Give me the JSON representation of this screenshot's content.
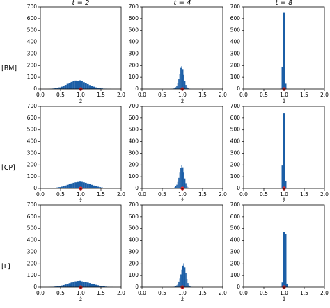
{
  "row_labels": [
    "[BM]",
    "[CP]",
    "[Γ]"
  ],
  "chart_data": [
    {
      "type": "histogram",
      "title": "t = 2",
      "xlabel": "ẑ",
      "color": "#1b5ea6",
      "marker_color": "#e8282b",
      "true_value": 1,
      "bins": [
        0.2,
        0.25,
        0.3,
        0.35,
        0.4,
        0.45,
        0.5,
        0.55,
        0.6,
        0.65,
        0.7,
        0.75,
        0.8,
        0.85,
        0.9,
        0.95,
        1.0,
        1.05,
        1.1,
        1.15,
        1.2,
        1.25,
        1.3,
        1.35,
        1.4,
        1.45,
        1.5,
        1.55,
        1.6,
        1.65,
        1.7,
        1.75,
        1.8
      ],
      "counts": [
        1,
        2,
        4,
        6,
        10,
        14,
        20,
        27,
        35,
        44,
        52,
        60,
        66,
        72,
        70,
        74,
        66,
        58,
        50,
        42,
        34,
        26,
        20,
        14,
        10,
        7,
        5,
        3,
        2,
        1,
        1,
        0
      ],
      "xlim": [
        0,
        2
      ],
      "ylim": [
        0,
        700
      ],
      "xticks": [
        {
          "value": 0,
          "label": "0.0"
        },
        0.5,
        {
          "value": 1,
          "label": "1.0"
        },
        1.5,
        {
          "value": 2,
          "label": "2.0"
        }
      ],
      "yticks": [
        0,
        100,
        200,
        300,
        400,
        500,
        600,
        700
      ]
    },
    {
      "type": "histogram",
      "title": "t = 4",
      "xlabel": "ẑ",
      "color": "#1b5ea6",
      "marker_color": "#e8282b",
      "true_value": 1,
      "bins": [
        0.7,
        0.725,
        0.75,
        0.775,
        0.8,
        0.825,
        0.85,
        0.875,
        0.9,
        0.925,
        0.95,
        0.975,
        1.0,
        1.025,
        1.05,
        1.075,
        1.1,
        1.125,
        1.15,
        1.175,
        1.2,
        1.225,
        1.25,
        1.275,
        1.3
      ],
      "counts": [
        0,
        1,
        2,
        4,
        8,
        15,
        28,
        50,
        85,
        130,
        180,
        195,
        170,
        120,
        70,
        35,
        15,
        6,
        3,
        1,
        0,
        0,
        0,
        0
      ],
      "xlim": [
        0,
        2
      ],
      "ylim": [
        0,
        700
      ],
      "xticks": [
        {
          "value": 0,
          "label": "0.0"
        },
        0.5,
        {
          "value": 1,
          "label": "1.0"
        },
        1.5,
        {
          "value": 2,
          "label": "2.0"
        }
      ],
      "yticks": [
        0,
        100,
        200,
        300,
        400,
        500,
        600,
        700
      ]
    },
    {
      "type": "histogram",
      "title": "t = 8",
      "xlabel": "ẑ",
      "color": "#1b5ea6",
      "marker_color": "#e8282b",
      "true_value": 1,
      "bins": [
        0.9,
        0.94,
        0.98,
        1.02,
        1.06,
        1.1
      ],
      "counts": [
        3,
        190,
        655,
        45,
        1
      ],
      "xlim": [
        0,
        2
      ],
      "ylim": [
        0,
        700
      ],
      "xticks": [
        {
          "value": 0,
          "label": "0.0"
        },
        0.5,
        {
          "value": 1,
          "label": "1.0"
        },
        1.5,
        {
          "value": 2,
          "label": "2.0"
        }
      ],
      "yticks": [
        0,
        100,
        200,
        300,
        400,
        500,
        600,
        700
      ]
    },
    {
      "type": "histogram",
      "xlabel": "ẑ",
      "color": "#1b5ea6",
      "marker_color": "#e8282b",
      "true_value": 1,
      "bins": [
        0.2,
        0.25,
        0.3,
        0.35,
        0.4,
        0.45,
        0.5,
        0.55,
        0.6,
        0.65,
        0.7,
        0.75,
        0.8,
        0.85,
        0.9,
        0.95,
        1.0,
        1.05,
        1.1,
        1.15,
        1.2,
        1.25,
        1.3,
        1.35,
        1.4,
        1.45,
        1.5,
        1.55,
        1.6,
        1.65,
        1.7,
        1.75,
        1.8
      ],
      "counts": [
        1,
        2,
        3,
        5,
        8,
        11,
        15,
        20,
        25,
        31,
        37,
        43,
        48,
        52,
        55,
        58,
        56,
        52,
        48,
        43,
        37,
        31,
        25,
        20,
        15,
        11,
        8,
        5,
        3,
        2,
        1,
        1
      ],
      "xlim": [
        0,
        2
      ],
      "ylim": [
        0,
        700
      ],
      "xticks": [
        {
          "value": 0,
          "label": "0.0"
        },
        0.5,
        {
          "value": 1,
          "label": "1.0"
        },
        1.5,
        {
          "value": 2,
          "label": "2.0"
        }
      ],
      "yticks": [
        0,
        100,
        200,
        300,
        400,
        500,
        600,
        700
      ]
    },
    {
      "type": "histogram",
      "xlabel": "ẑ",
      "color": "#1b5ea6",
      "marker_color": "#e8282b",
      "true_value": 1,
      "bins": [
        0.7,
        0.725,
        0.75,
        0.775,
        0.8,
        0.825,
        0.85,
        0.875,
        0.9,
        0.925,
        0.95,
        0.975,
        1.0,
        1.025,
        1.05,
        1.075,
        1.1,
        1.125,
        1.15,
        1.175,
        1.2,
        1.225,
        1.25,
        1.275,
        1.3
      ],
      "counts": [
        0,
        1,
        2,
        5,
        10,
        18,
        32,
        55,
        90,
        135,
        175,
        200,
        180,
        135,
        85,
        45,
        20,
        8,
        3,
        1,
        0,
        0,
        0,
        0
      ],
      "xlim": [
        0,
        2
      ],
      "ylim": [
        0,
        700
      ],
      "xticks": [
        {
          "value": 0,
          "label": "0.0"
        },
        0.5,
        {
          "value": 1,
          "label": "1.0"
        },
        1.5,
        {
          "value": 2,
          "label": "2.0"
        }
      ],
      "yticks": [
        0,
        100,
        200,
        300,
        400,
        500,
        600,
        700
      ]
    },
    {
      "type": "histogram",
      "xlabel": "ẑ",
      "color": "#1b5ea6",
      "marker_color": "#e8282b",
      "true_value": 1,
      "bins": [
        0.9,
        0.94,
        0.98,
        1.02,
        1.06,
        1.1
      ],
      "counts": [
        5,
        195,
        640,
        60,
        2
      ],
      "xlim": [
        0,
        2
      ],
      "ylim": [
        0,
        700
      ],
      "xticks": [
        {
          "value": 0,
          "label": "0.0"
        },
        0.5,
        {
          "value": 1,
          "label": "1.0"
        },
        1.5,
        {
          "value": 2,
          "label": "2.0"
        }
      ],
      "yticks": [
        0,
        100,
        200,
        300,
        400,
        500,
        600,
        700
      ]
    },
    {
      "type": "histogram",
      "xlabel": "ẑ",
      "color": "#1b5ea6",
      "marker_color": "#e8282b",
      "true_value": 1,
      "bins": [
        0.2,
        0.25,
        0.3,
        0.35,
        0.4,
        0.45,
        0.5,
        0.55,
        0.6,
        0.65,
        0.7,
        0.75,
        0.8,
        0.85,
        0.9,
        0.95,
        1.0,
        1.05,
        1.1,
        1.15,
        1.2,
        1.25,
        1.3,
        1.35,
        1.4,
        1.45,
        1.5,
        1.55,
        1.6,
        1.65,
        1.7,
        1.75,
        1.8
      ],
      "counts": [
        1,
        2,
        3,
        5,
        7,
        10,
        14,
        18,
        23,
        28,
        34,
        40,
        45,
        50,
        53,
        55,
        50,
        47,
        44,
        40,
        35,
        30,
        25,
        20,
        16,
        12,
        9,
        6,
        4,
        2,
        1,
        1
      ],
      "xlim": [
        0,
        2
      ],
      "ylim": [
        0,
        700
      ],
      "xticks": [
        {
          "value": 0,
          "label": "0.0"
        },
        0.5,
        {
          "value": 1,
          "label": "1.0"
        },
        1.5,
        {
          "value": 2,
          "label": "2.0"
        }
      ],
      "yticks": [
        0,
        100,
        200,
        300,
        400,
        500,
        600,
        700
      ]
    },
    {
      "type": "histogram",
      "xlabel": "ẑ",
      "color": "#1b5ea6",
      "marker_color": "#e8282b",
      "true_value": 1,
      "bins": [
        0.7,
        0.725,
        0.75,
        0.775,
        0.8,
        0.825,
        0.85,
        0.875,
        0.9,
        0.925,
        0.95,
        0.975,
        1.0,
        1.025,
        1.05,
        1.075,
        1.1,
        1.125,
        1.15,
        1.175,
        1.2,
        1.225,
        1.25,
        1.275,
        1.3
      ],
      "counts": [
        0,
        0,
        1,
        2,
        4,
        8,
        15,
        28,
        48,
        75,
        110,
        150,
        185,
        205,
        170,
        120,
        70,
        35,
        15,
        6,
        2,
        1,
        0,
        0
      ],
      "xlim": [
        0,
        2
      ],
      "ylim": [
        0,
        700
      ],
      "xticks": [
        {
          "value": 0,
          "label": "0.0"
        },
        0.5,
        {
          "value": 1,
          "label": "1.0"
        },
        1.5,
        {
          "value": 2,
          "label": "2.0"
        }
      ],
      "yticks": [
        0,
        100,
        200,
        300,
        400,
        500,
        600,
        700
      ]
    },
    {
      "type": "histogram",
      "xlabel": "ẑ",
      "color": "#1b5ea6",
      "marker_color": "#e8282b",
      "true_value": 1,
      "bins": [
        0.9,
        0.94,
        0.98,
        1.02,
        1.06,
        1.1
      ],
      "counts": [
        2,
        40,
        470,
        455,
        30
      ],
      "xlim": [
        0,
        2
      ],
      "ylim": [
        0,
        700
      ],
      "xticks": [
        {
          "value": 0,
          "label": "0.0"
        },
        0.5,
        {
          "value": 1,
          "label": "1.0"
        },
        1.5,
        {
          "value": 2,
          "label": "2.0"
        }
      ],
      "yticks": [
        0,
        100,
        200,
        300,
        400,
        500,
        600,
        700
      ]
    }
  ]
}
